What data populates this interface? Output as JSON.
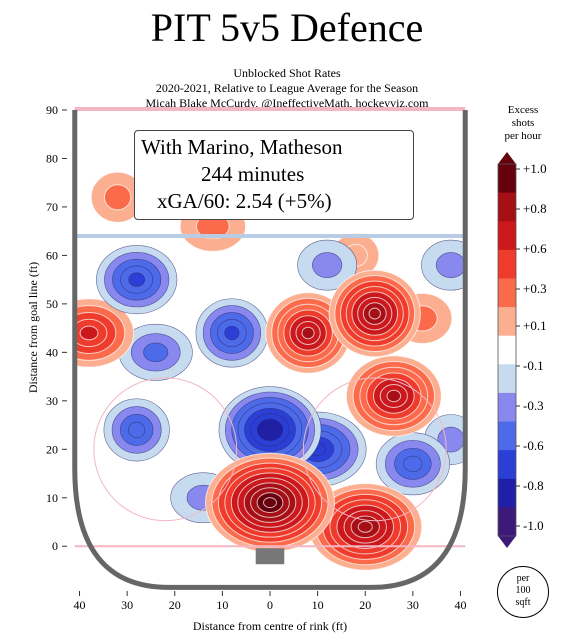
{
  "title": "PIT 5v5 Defence",
  "subtitle_lines": [
    "Unblocked Shot Rates",
    "2020-2021, Relative to League Average for the Season",
    "Micah Blake McCurdy, @IneffectiveMath, hockeyviz.com"
  ],
  "infobox": {
    "line1": "With Marino, Matheson",
    "line2": "244 minutes",
    "line3": "xGA/60: 2.54 (+5%)"
  },
  "colorbar": {
    "title_lines": [
      "Excess",
      "shots",
      "per hour"
    ],
    "tick_labels": [
      "+1.0",
      "+0.8",
      "+0.6",
      "+0.3",
      "+0.1",
      "-0.1",
      "-0.3",
      "-0.6",
      "-0.8",
      "-1.0"
    ],
    "colors": [
      "#67000d",
      "#a50f15",
      "#cb181d",
      "#ef3b2c",
      "#fb6a4a",
      "#fcae91",
      "#ffffff",
      "#c6dbef",
      "#8888ee",
      "#4d6ae8",
      "#2b3fd6",
      "#1f1fa8",
      "#3d1a7a"
    ]
  },
  "unit_badge": [
    "per",
    "100",
    "sqft"
  ],
  "chart_data": {
    "type": "heatmap",
    "title": "PIT 5v5 Defence",
    "xlabel": "Distance from centre of rink (ft)",
    "ylabel": "Distance from goal line (ft)",
    "xlim": [
      -42,
      42
    ],
    "ylim": [
      -8,
      90
    ],
    "x_ticks": [
      -40,
      -30,
      -20,
      -10,
      0,
      10,
      20,
      30,
      40
    ],
    "x_tick_labels": [
      "40",
      "30",
      "20",
      "10",
      "0",
      "10",
      "20",
      "30",
      "40"
    ],
    "y_ticks": [
      0,
      10,
      20,
      30,
      40,
      50,
      60,
      70,
      80,
      90
    ],
    "y_tick_labels": [
      "0",
      "10",
      "20",
      "30",
      "40",
      "50",
      "60",
      "70",
      "80",
      "90"
    ],
    "value_range": [
      -1.0,
      1.0
    ],
    "hotspots": [
      {
        "x": 0,
        "y": 9,
        "value": 1.0
      },
      {
        "x": 20,
        "y": 4,
        "value": 0.8
      },
      {
        "x": 8,
        "y": 44,
        "value": 0.7
      },
      {
        "x": 22,
        "y": 48,
        "value": 0.8
      },
      {
        "x": 26,
        "y": 31,
        "value": 0.7
      },
      {
        "x": -38,
        "y": 44,
        "value": 0.5
      },
      {
        "x": 32,
        "y": 47,
        "value": 0.2
      },
      {
        "x": -12,
        "y": 66,
        "value": 0.2
      },
      {
        "x": 18,
        "y": 60,
        "value": 0.1
      },
      {
        "x": -32,
        "y": 72,
        "value": 0.2
      },
      {
        "x": 0,
        "y": 24,
        "value": -0.8
      },
      {
        "x": 10,
        "y": 20,
        "value": -0.6
      },
      {
        "x": -8,
        "y": 44,
        "value": -0.5
      },
      {
        "x": -28,
        "y": 55,
        "value": -0.5
      },
      {
        "x": -28,
        "y": 24,
        "value": -0.4
      },
      {
        "x": 30,
        "y": 17,
        "value": -0.4
      },
      {
        "x": -24,
        "y": 40,
        "value": -0.3
      },
      {
        "x": 38,
        "y": 58,
        "value": -0.2
      },
      {
        "x": -14,
        "y": 10,
        "value": -0.2
      },
      {
        "x": 38,
        "y": 22,
        "value": -0.2
      },
      {
        "x": 12,
        "y": 58,
        "value": -0.2
      }
    ]
  }
}
